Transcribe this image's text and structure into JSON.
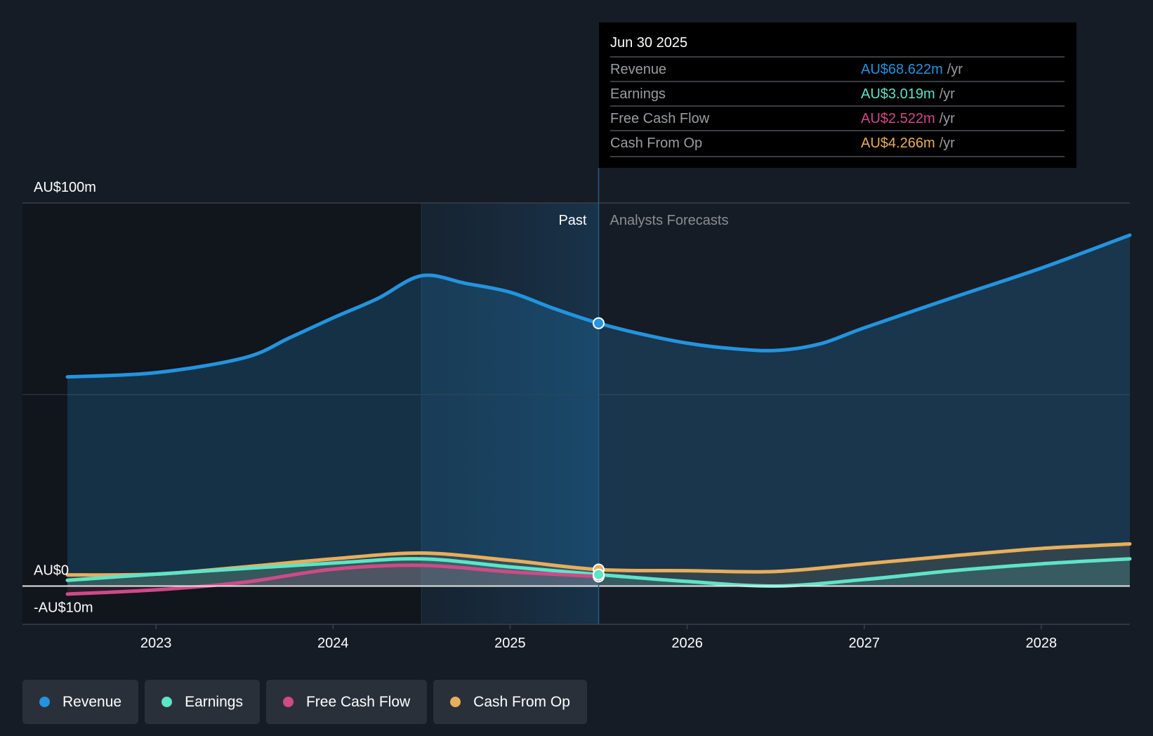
{
  "tooltip": {
    "date": "Jun 30 2025",
    "rows": [
      {
        "label": "Revenue",
        "value": "AU$68.622m",
        "unit": "/yr",
        "color": "#2394df"
      },
      {
        "label": "Earnings",
        "value": "AU$3.019m",
        "unit": "/yr",
        "color": "#5ee4c8"
      },
      {
        "label": "Free Cash Flow",
        "value": "AU$2.522m",
        "unit": "/yr",
        "color": "#cf4a87"
      },
      {
        "label": "Cash From Op",
        "value": "AU$4.266m",
        "unit": "/yr",
        "color": "#e8ae5a"
      }
    ]
  },
  "legend": [
    {
      "label": "Revenue",
      "color": "#2394df"
    },
    {
      "label": "Earnings",
      "color": "#5ee4c8"
    },
    {
      "label": "Free Cash Flow",
      "color": "#cf4a87"
    },
    {
      "label": "Cash From Op",
      "color": "#e8ae5a"
    }
  ],
  "chart_data": {
    "type": "line",
    "title": "",
    "xlabel": "",
    "ylabel": "",
    "xlim": [
      2022.5,
      2028.5
    ],
    "ylim": [
      -10,
      100
    ],
    "y_ticks": [
      {
        "value": 100,
        "label": "AU$100m"
      },
      {
        "value": 0,
        "label": "AU$0"
      },
      {
        "value": -10,
        "label": "-AU$10m"
      }
    ],
    "x_ticks": [
      {
        "value": 2023,
        "label": "2023"
      },
      {
        "value": 2024,
        "label": "2024"
      },
      {
        "value": 2025,
        "label": "2025"
      },
      {
        "value": 2026,
        "label": "2026"
      },
      {
        "value": 2027,
        "label": "2027"
      },
      {
        "value": 2028,
        "label": "2028"
      }
    ],
    "grid": true,
    "past_label": "Past",
    "forecast_label": "Analysts Forecasts",
    "past_region_start": 2024.5,
    "divider_x": 2025.5,
    "series": [
      {
        "name": "Revenue",
        "color": "#2394df",
        "x": [
          2022.5,
          2023,
          2023.5,
          2023.75,
          2024,
          2024.25,
          2024.5,
          2024.75,
          2025,
          2025.25,
          2025.5,
          2025.75,
          2026,
          2026.25,
          2026.5,
          2026.75,
          2027,
          2027.5,
          2028,
          2028.5
        ],
        "y": [
          54.6,
          55.7,
          59.6,
          64.7,
          70,
          75,
          81,
          79,
          76.7,
          72.4,
          68.6,
          65.7,
          63.4,
          62,
          61.5,
          63.2,
          67.4,
          75.3,
          83,
          91.6
        ]
      },
      {
        "name": "Earnings",
        "color": "#5ee4c8",
        "x": [
          2022.5,
          2023,
          2024,
          2024.5,
          2025,
          2025.5,
          2026,
          2026.5,
          2027,
          2027.5,
          2028,
          2028.5
        ],
        "y": [
          1.5,
          3.1,
          6,
          7.1,
          5,
          3.0,
          1.2,
          0,
          1.7,
          4,
          5.8,
          7.1
        ]
      },
      {
        "name": "Free Cash Flow",
        "color": "#cf4a87",
        "x": [
          2022.5,
          2023,
          2023.5,
          2024,
          2024.5,
          2025,
          2025.5
        ],
        "y": [
          -2.1,
          -1,
          1,
          4.4,
          5.4,
          3.7,
          2.5
        ]
      },
      {
        "name": "Cash From Op",
        "color": "#e8ae5a",
        "x": [
          2022.5,
          2023,
          2023.5,
          2024,
          2024.5,
          2025,
          2025.5,
          2026,
          2026.5,
          2027,
          2027.5,
          2028,
          2028.5
        ],
        "y": [
          2.9,
          3.1,
          5,
          7.1,
          8.6,
          6.7,
          4.3,
          4,
          3.8,
          5.8,
          7.9,
          9.8,
          11
        ]
      }
    ]
  }
}
